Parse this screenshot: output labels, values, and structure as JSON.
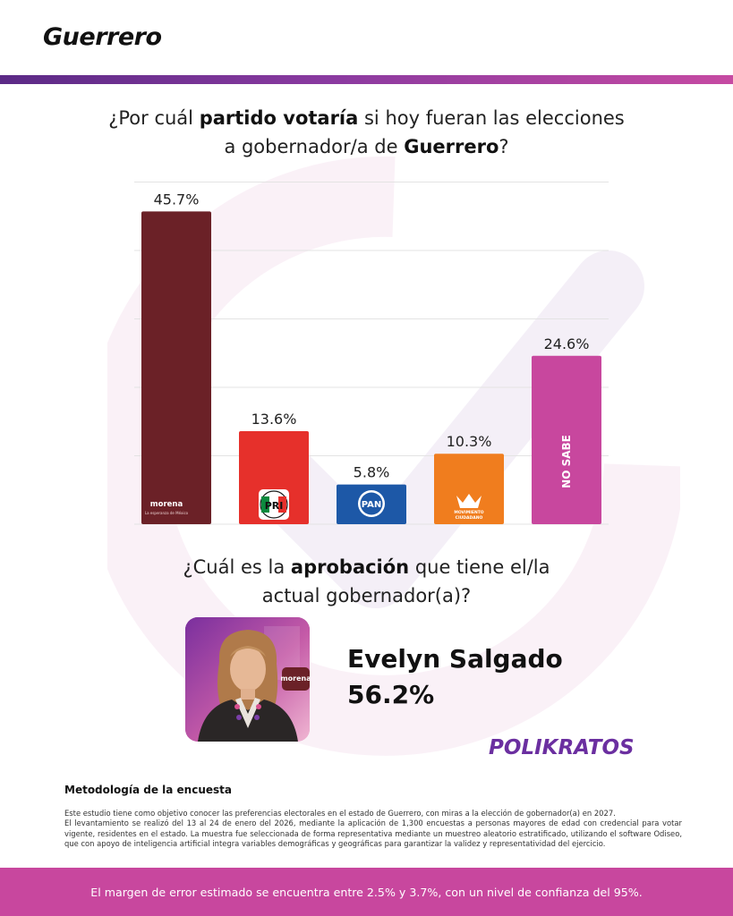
{
  "header": {
    "title": "Guerrero"
  },
  "question1": {
    "prefix": "¿Por cuál ",
    "bold1": "partido votaría",
    "middle": " si hoy fueran las elecciones",
    "line2_prefix": "a gobernador/a de ",
    "bold2": "Guerrero",
    "suffix": "?"
  },
  "chart_data": {
    "type": "bar",
    "categories": [
      "morena",
      "PRI",
      "PAN",
      "MOVIMIENTO CIUDADANO",
      "NO SABE"
    ],
    "values": [
      45.7,
      13.6,
      5.8,
      10.3,
      24.6
    ],
    "value_labels": [
      "45.7%",
      "13.6%",
      "5.8%",
      "10.3%",
      "24.6%"
    ],
    "ylim": [
      0,
      50
    ],
    "grid": true,
    "colors": [
      "#6b2127",
      "#e6302b",
      "#1d58a7",
      "#f07d1e",
      "#c8479e"
    ],
    "logo_names": [
      "morena-logo",
      "pri-logo",
      "pan-logo",
      "movimiento-ciudadano-logo",
      "no-sabe-label"
    ],
    "inbar_labels": {
      "morena": "morena",
      "morena_sub": "La esperanza de México",
      "pri": "PRI",
      "pan": "PAN",
      "mc": "MOVIMIENTO",
      "mc2": "CIUDADANO",
      "nosabe": "NO SABE"
    }
  },
  "question2": {
    "prefix": "¿Cuál es la ",
    "bold": "aprobación",
    "middle": " que tiene el/la",
    "line2": "actual gobernador(a)?"
  },
  "approval": {
    "photo_badge": "morena",
    "name": "Evelyn Salgado",
    "value": "56.2%"
  },
  "brand": {
    "name": "POLIKRATOS",
    "color": "#6b2fa0"
  },
  "methodology": {
    "title": "Metodología de la encuesta",
    "p1": "Este estudio tiene como objetivo conocer las preferencias electorales en el estado de Guerrero, con miras a la elección de gobernador(a) en 2027.",
    "p2": "El levantamiento se realizó del 13 al 24 de enero del 2026, mediante la aplicación de 1,300 encuestas a personas mayores de edad con credencial para votar vigente, residentes en el estado. La muestra fue seleccionada de forma representativa mediante un muestreo aleatorio estratificado, utilizando el software Odiseo, que con apoyo de inteligencia artificial integra variables demográficas y geográficas para garantizar la validez y representatividad del ejercicio."
  },
  "footer": {
    "text": "El margen de error estimado se encuentra entre 2.5% y 3.7%, con un nivel de confianza del 95%."
  }
}
